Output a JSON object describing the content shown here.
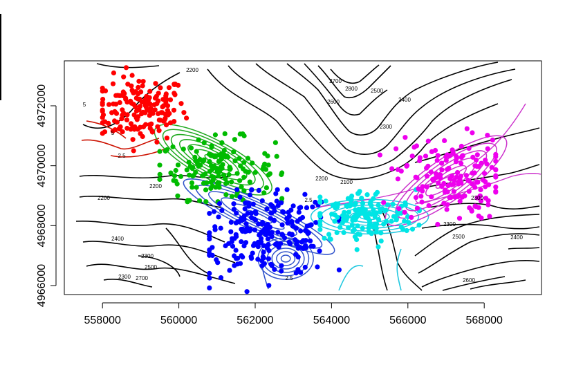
{
  "chart_data": {
    "type": "scatter",
    "title": "",
    "xlabel": "",
    "ylabel": "",
    "xlim": [
      557000,
      569500
    ],
    "ylim": [
      4965700,
      4973500
    ],
    "grid": false,
    "legend": "none",
    "x_ticks": [
      558000,
      560000,
      562000,
      564000,
      566000,
      568000
    ],
    "x_tick_labels": [
      "558000",
      "560000",
      "562000",
      "564000",
      "566000",
      "568000"
    ],
    "y_ticks": [
      4966000,
      4968000,
      4970000,
      4972000
    ],
    "y_tick_labels": [
      "4966000",
      "4968000",
      "4970000",
      "4972000"
    ],
    "elevation_contour_labels": [
      "2200",
      "2700",
      "2800",
      "2500",
      "2600",
      "2400",
      "2300",
      "2200",
      "2100",
      "2200",
      "2300",
      "2200",
      "2300",
      "2400",
      "2500",
      "2300",
      "2400",
      "2500",
      "2600",
      "2700",
      "2300"
    ],
    "density_contour_labels": [
      "5",
      "5",
      "2.5",
      "2.5",
      "2.5"
    ],
    "series": [
      {
        "color": "#ff0000",
        "center": [
          559000,
          4971900
        ],
        "spread": [
          600,
          550
        ],
        "count": 170,
        "x_range": [
          558000,
          560200
        ],
        "y_range": [
          4970500,
          4973300
        ]
      },
      {
        "color": "#00bb00",
        "center": [
          561000,
          4969900
        ],
        "spread": [
          750,
          500
        ],
        "count": 150,
        "x_range": [
          559500,
          562700
        ],
        "y_range": [
          4968800,
          4971300
        ]
      },
      {
        "color": "#0000ff",
        "center": [
          562300,
          4967700
        ],
        "spread": [
          900,
          700
        ],
        "count": 230,
        "x_range": [
          560800,
          564200
        ],
        "y_range": [
          4965800,
          4969200
        ]
      },
      {
        "color": "#00e5e5",
        "center": [
          564800,
          4968300
        ],
        "spread": [
          700,
          450
        ],
        "count": 150,
        "x_range": [
          563700,
          566300
        ],
        "y_range": [
          4967200,
          4969200
        ]
      },
      {
        "color": "#ee00ee",
        "center": [
          567100,
          4969600
        ],
        "spread": [
          700,
          700
        ],
        "count": 160,
        "x_range": [
          565200,
          568300
        ],
        "y_range": [
          4968000,
          4971600
        ]
      }
    ]
  },
  "colors": {
    "elevation_contour": "#000000",
    "red_density": "#cc1100",
    "green_density": "#22aa22",
    "blue_density": "#3355cc",
    "cyan_density": "#22c8e0",
    "magenta_density": "#cc33cc"
  }
}
